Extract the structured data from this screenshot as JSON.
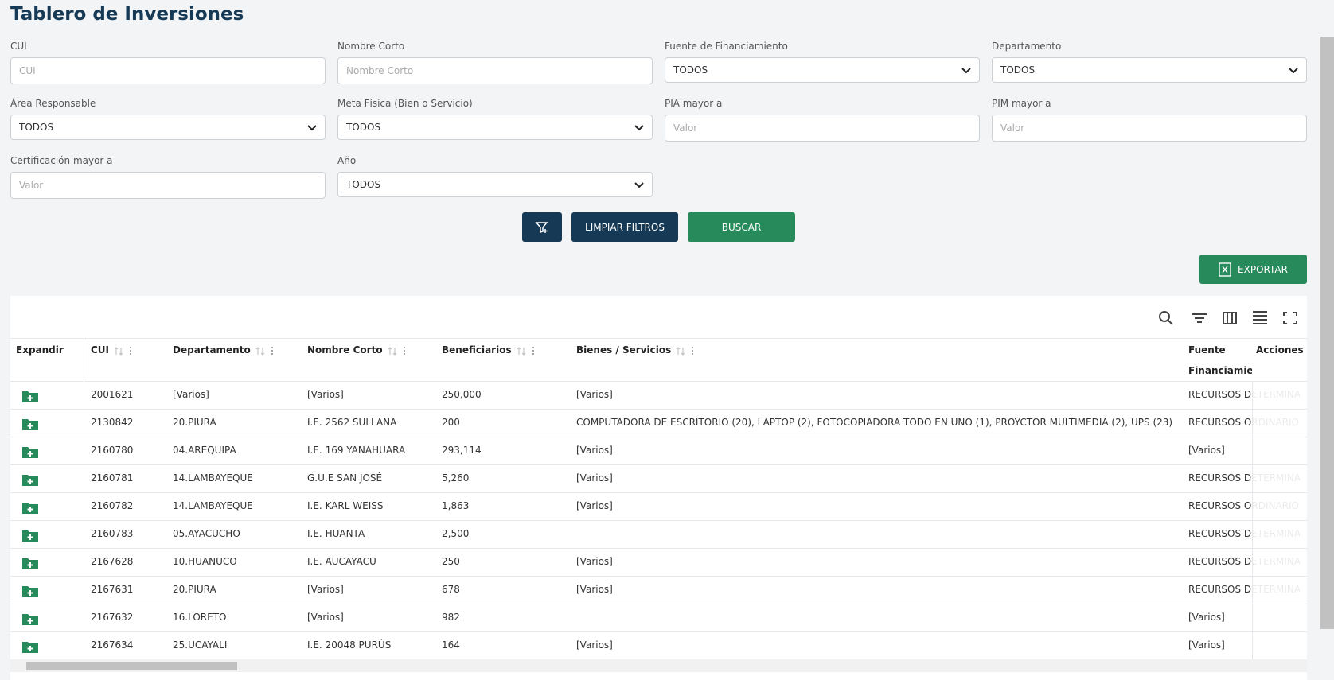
{
  "header": {
    "title": "Tablero de Inversiones"
  },
  "filters": [
    {
      "label": "CUI",
      "placeholder": "CUI"
    },
    {
      "label": "Nombre Corto",
      "placeholder": "Nombre Corto"
    },
    {
      "label": "Fuente de Financiamiento",
      "value": "TODOS"
    },
    {
      "label": "Departamento",
      "value": "TODOS"
    },
    {
      "label": "Área Responsable",
      "value": "TODOS"
    },
    {
      "label": "Meta Física (Bien o Servicio)",
      "value": "TODOS"
    },
    {
      "label": "PIA mayor a",
      "placeholder": "Valor"
    },
    {
      "label": "PIM mayor a",
      "placeholder": "Valor"
    },
    {
      "label": "Certificación mayor a",
      "placeholder": "Valor"
    },
    {
      "label": "Año",
      "value": "TODOS"
    }
  ],
  "buttons": {
    "clear": "LIMPIAR FILTROS",
    "search": "BUSCAR",
    "export": "EXPORTAR"
  },
  "table": {
    "columns": [
      "Expandir",
      "CUI",
      "Departamento",
      "Nombre Corto",
      "Beneficiarios",
      "Bienes / Servicios",
      "Fuente Financiamiento",
      "Acciones"
    ],
    "rows": [
      [
        "2001621",
        "[Varios]",
        "[Varios]",
        "250,000",
        "[Varios]",
        "RECURSOS DETERMINADOS"
      ],
      [
        "2130842",
        "20.PIURA",
        "I.E. 2562 SULLANA",
        "200",
        "COMPUTADORA DE ESCRITORIO (20), LAPTOP (2), FOTOCOPIADORA TODO EN UNO (1), PROYCTOR MULTIMEDIA (2), UPS (23)",
        "RECURSOS ORDINARIOS"
      ],
      [
        "2160780",
        "04.AREQUIPA",
        "I.E. 169 YANAHUARA",
        "293,114",
        "[Varios]",
        "[Varios]"
      ],
      [
        "2160781",
        "14.LAMBAYEQUE",
        "G.U.E SAN JOSÉ",
        "5,260",
        "[Varios]",
        "RECURSOS DETERMINADOS"
      ],
      [
        "2160782",
        "14.LAMBAYEQUE",
        "I.E. KARL WEISS",
        "1,863",
        "[Varios]",
        "RECURSOS ORDINARIOS"
      ],
      [
        "2160783",
        "05.AYACUCHO",
        "I.E. HUANTA",
        "2,500",
        null,
        "RECURSOS DETERMINADOS"
      ],
      [
        "2167628",
        "10.HUANUCO",
        "I.E. AUCAYACU",
        "250",
        "[Varios]",
        "RECURSOS DETERMINADOS"
      ],
      [
        "2167631",
        "20.PIURA",
        "[Varios]",
        "678",
        "[Varios]",
        "RECURSOS DETERMINADOS"
      ],
      [
        "2167632",
        "16.LORETO",
        "[Varios]",
        "982",
        null,
        "[Varios]"
      ],
      [
        "2167634",
        "25.UCAYALI",
        "I.E. 20048 PURÚS",
        "164",
        "[Varios]",
        "[Varios]"
      ]
    ]
  }
}
